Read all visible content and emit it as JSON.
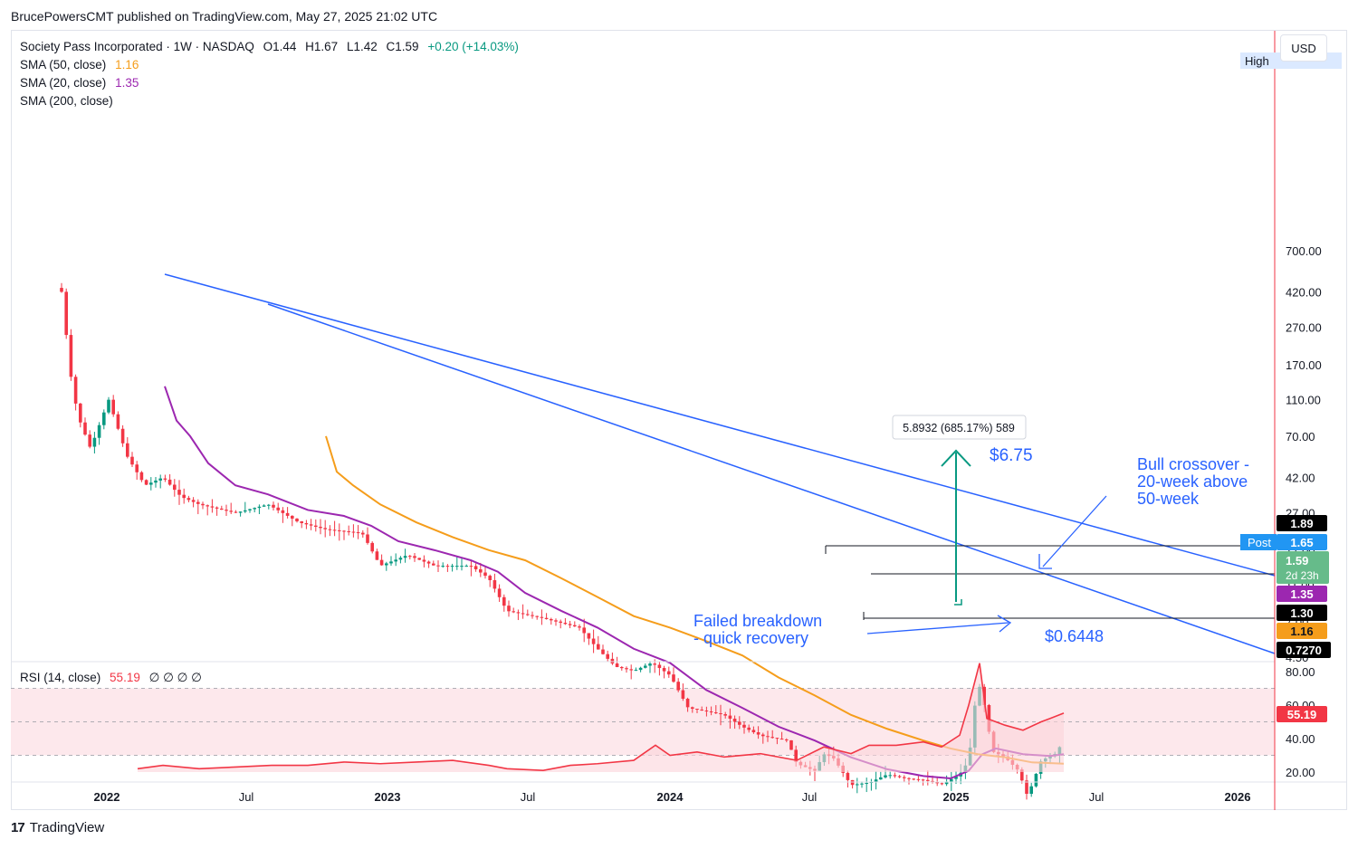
{
  "publisher": "BrucePowersCMT published on TradingView.com, May 27, 2025 21:02 UTC",
  "footer_brand": "TradingView",
  "currency_button": "USD",
  "chart_data": {
    "type": "candlestick",
    "timeframe": "1W",
    "symbol": {
      "name": "Society Pass Incorporated",
      "interval": "1W",
      "exchange": "NASDAQ",
      "open_label": "O1.44",
      "high_label": "H1.67",
      "low_label": "L1.42",
      "close_label": "C1.59",
      "change_label": "+0.20 (+14.03%)",
      "line": "Society Pass Incorporated · 1W · NASDAQ"
    },
    "indicators": [
      {
        "name": "SMA (50, close)",
        "value": "1.16",
        "color": "#f59d1b"
      },
      {
        "name": "SMA (20, close)",
        "value": "1.35",
        "color": "#9c27b0"
      },
      {
        "name": "SMA (200, close)",
        "value": "",
        "color": "#2962ff"
      }
    ],
    "price_axis": {
      "scale": "log",
      "ticks": [
        "700.00",
        "420.00",
        "270.00",
        "170.00",
        "110.00",
        "70.00",
        "42.00",
        "27.00",
        "17.00",
        "11.00",
        "7.00",
        "4.50"
      ],
      "tick_values": [
        700,
        420,
        270,
        170,
        110,
        70,
        42,
        27,
        17,
        11,
        7,
        4.5
      ],
      "ylim": [
        0.6,
        1100
      ]
    },
    "time_axis": {
      "labels": [
        "2022",
        "Jul",
        "2023",
        "Jul",
        "2024",
        "Jul",
        "2025",
        "Jul",
        "2026"
      ],
      "bold": [
        "2022",
        "2023",
        "2024",
        "2025",
        "2026"
      ]
    },
    "price_labels": {
      "high": "High",
      "post": "Post",
      "p189": "1.89",
      "p165": "1.65",
      "p159": "1.59",
      "countdown": "2d 23h",
      "p135": "1.35",
      "p130": "1.30",
      "p116": "1.16",
      "p07270": "0.7270"
    },
    "annotations": {
      "measure": "5.8932 (685.17%) 589",
      "peak": "$6.75",
      "low": "$0.6448",
      "bull1": "Bull crossover -",
      "bull2": "20-week above",
      "bull3": "50-week",
      "fail1": "Failed breakdown",
      "fail2": "- quick recovery"
    },
    "rsi": {
      "name": "RSI (14, close)",
      "value": "55.19",
      "extras": "∅ ∅ ∅ ∅",
      "ticks": [
        "80.00",
        "60.00",
        "40.00",
        "20.00"
      ],
      "levels": [
        70,
        50,
        30
      ],
      "line_color": "#f23645",
      "last": 55.19
    }
  }
}
